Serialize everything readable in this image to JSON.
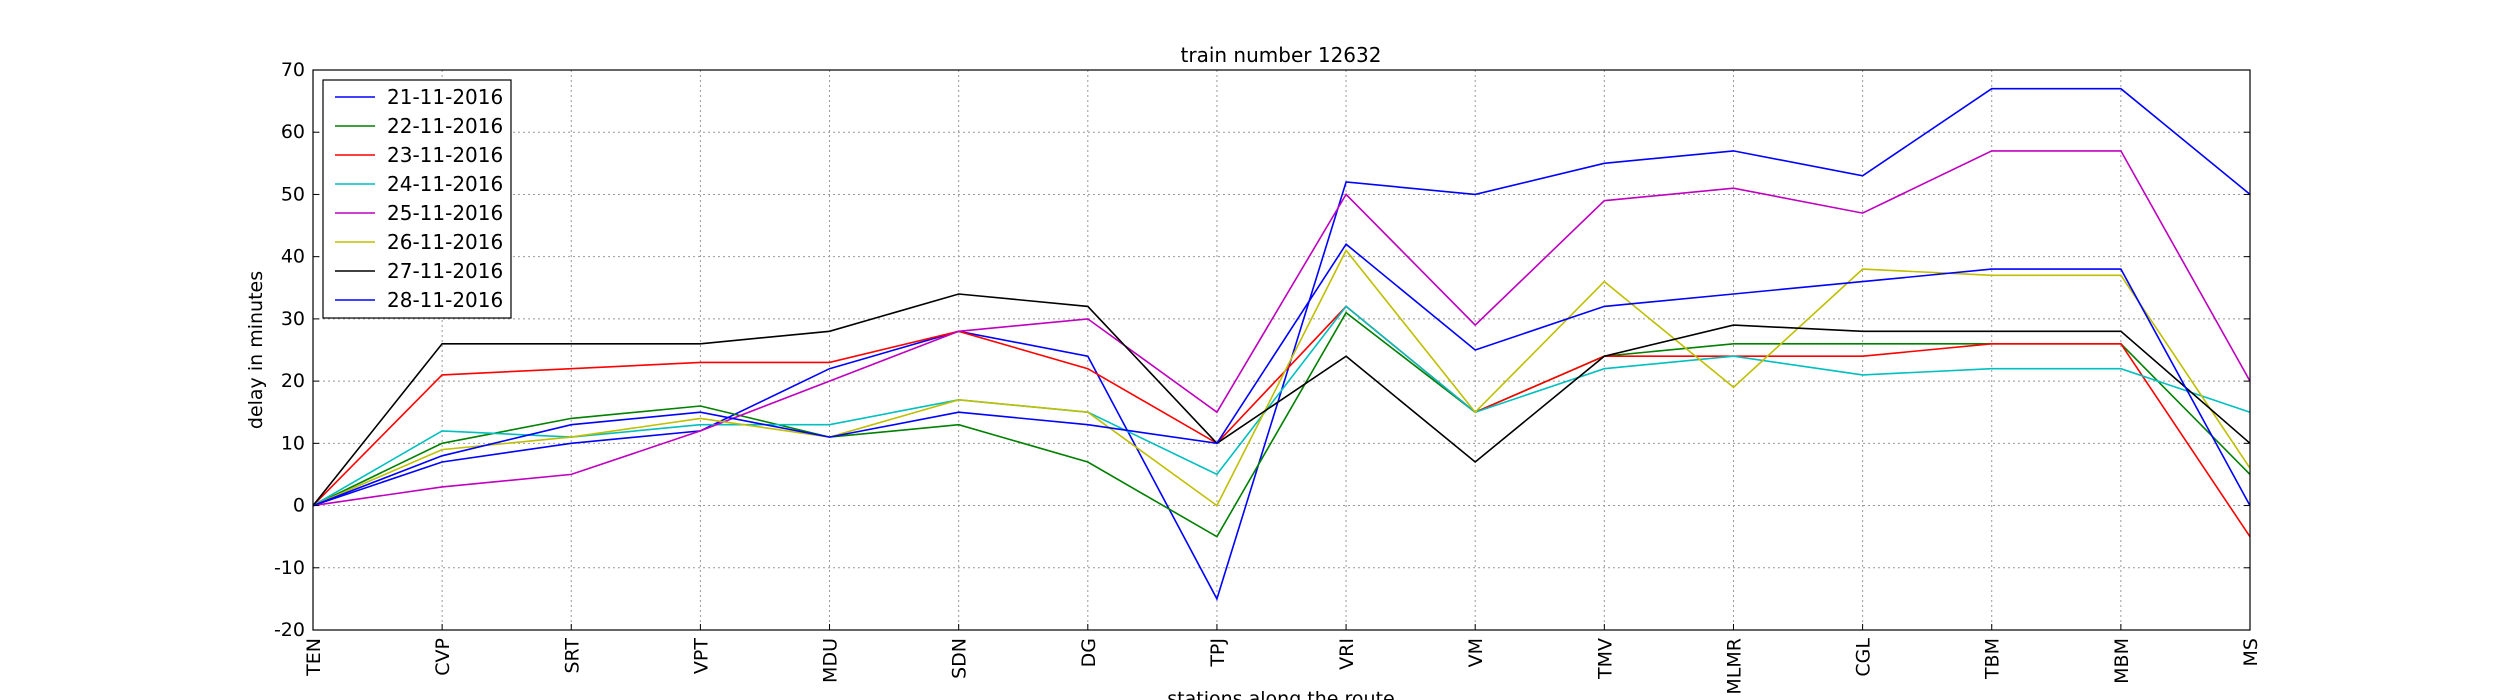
{
  "chart_data": {
    "type": "line",
    "title": "train number 12632",
    "xlabel": "stations along the route",
    "ylabel": "delay in minutes",
    "ylim": [
      -20,
      70
    ],
    "yticks": [
      -20,
      -10,
      0,
      10,
      20,
      30,
      40,
      50,
      60,
      70
    ],
    "grid": true,
    "legend_position": "top-left",
    "categories": [
      "TEN",
      "CVP",
      "SRT",
      "VPT",
      "MDU",
      "SDN",
      "DG",
      "TPJ",
      "VRI",
      "VM",
      "TMV",
      "MLMR",
      "CGL",
      "TBM",
      "MBM",
      "MS"
    ],
    "series": [
      {
        "name": "21-11-2016",
        "color": "#0000ff",
        "values": [
          0,
          7,
          10,
          12,
          22,
          28,
          24,
          -15,
          52,
          50,
          55,
          57,
          53,
          67,
          67,
          50
        ]
      },
      {
        "name": "22-11-2016",
        "color": "#008000",
        "values": [
          0,
          10,
          14,
          16,
          11,
          13,
          7,
          -5,
          31,
          15,
          24,
          26,
          26,
          26,
          26,
          5
        ]
      },
      {
        "name": "23-11-2016",
        "color": "#ff0000",
        "values": [
          0,
          21,
          22,
          23,
          23,
          28,
          22,
          10,
          32,
          15,
          24,
          24,
          24,
          26,
          26,
          -5
        ]
      },
      {
        "name": "24-11-2016",
        "color": "#00bfbf",
        "values": [
          0,
          12,
          11,
          13,
          13,
          17,
          15,
          5,
          32,
          15,
          22,
          24,
          21,
          22,
          22,
          15
        ]
      },
      {
        "name": "25-11-2016",
        "color": "#bf00bf",
        "values": [
          0,
          3,
          5,
          12,
          20,
          28,
          30,
          15,
          50,
          29,
          49,
          51,
          47,
          57,
          57,
          20
        ]
      },
      {
        "name": "26-11-2016",
        "color": "#bfbf00",
        "values": [
          0,
          9,
          11,
          14,
          11,
          17,
          15,
          0,
          41,
          15,
          36,
          19,
          38,
          37,
          37,
          6
        ]
      },
      {
        "name": "27-11-2016",
        "color": "#000000",
        "values": [
          0,
          26,
          26,
          26,
          28,
          34,
          32,
          10,
          24,
          7,
          24,
          29,
          28,
          28,
          28,
          10
        ]
      },
      {
        "name": "28-11-2016",
        "color": "#0000ff",
        "values": [
          0,
          8,
          13,
          15,
          11,
          15,
          13,
          10,
          42,
          25,
          32,
          34,
          36,
          38,
          38,
          0
        ]
      }
    ]
  }
}
